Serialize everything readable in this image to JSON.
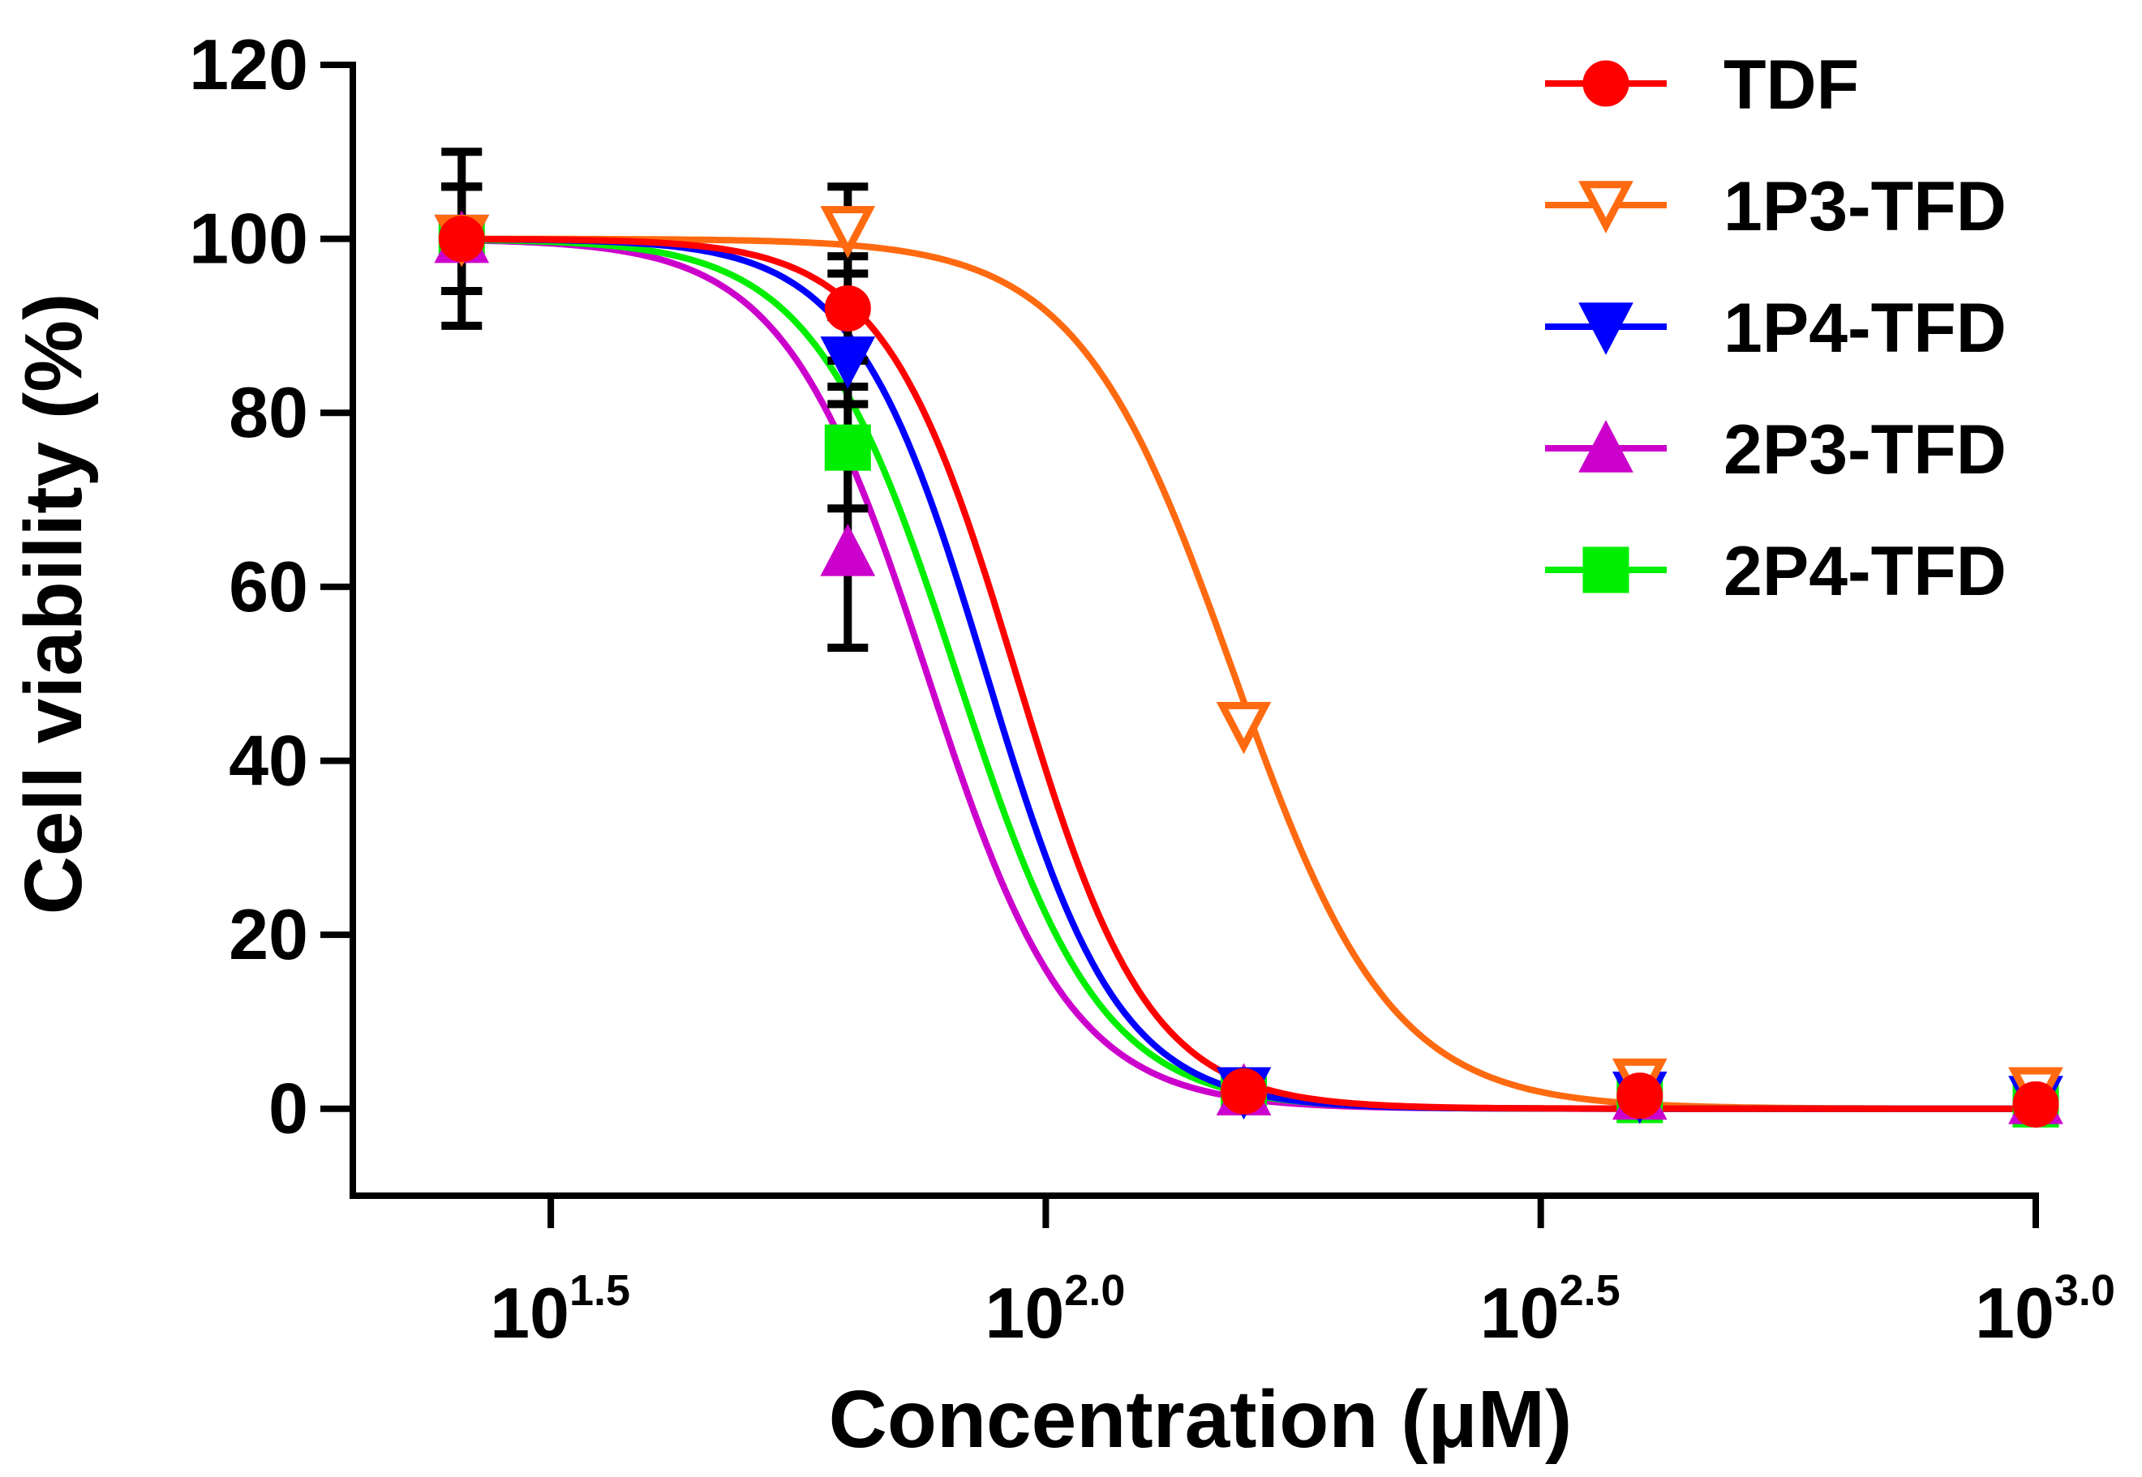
{
  "chart_data": {
    "type": "line",
    "title": "",
    "xlabel": "Concentration (μM)",
    "ylabel": "Cell viability (%)",
    "xscale": "log10",
    "xlim_log10": [
      1.3,
      3.0
    ],
    "ylim": [
      -10,
      120
    ],
    "yticks": [
      0,
      20,
      40,
      60,
      80,
      100,
      120
    ],
    "xticks": [
      {
        "exp": 1.5,
        "base": "10",
        "sup": "1.5"
      },
      {
        "exp": 2.0,
        "base": "10",
        "sup": "2.0"
      },
      {
        "exp": 2.5,
        "base": "10",
        "sup": "2.5"
      },
      {
        "exp": 3.0,
        "base": "10",
        "sup": "3.0"
      }
    ],
    "grid": false,
    "legend_position": "top-right",
    "series": [
      {
        "name": "TDF",
        "color": "#ff0000",
        "marker": "circle",
        "fill": true,
        "x_log10": [
          1.41,
          1.8,
          2.2,
          2.6,
          3.0
        ],
        "y": [
          100,
          92,
          2,
          1.5,
          0.5
        ],
        "err": [
          10,
          6,
          1,
          1,
          1
        ],
        "fit": {
          "top": 100,
          "bottom": 0,
          "log_ic50": 1.97,
          "hill": 6.5
        }
      },
      {
        "name": "1P3-TFD",
        "color": "#ff6a10",
        "marker": "triangle-down",
        "fill": false,
        "x_log10": [
          1.41,
          1.8,
          2.2,
          2.6,
          3.0
        ],
        "y": [
          100,
          101,
          44,
          3,
          2
        ],
        "err": [
          6,
          5,
          2,
          1,
          1
        ],
        "fit": {
          "top": 100,
          "bottom": 0,
          "log_ic50": 2.19,
          "hill": 5.5
        }
      },
      {
        "name": "1P4-TFD",
        "color": "#0000ff",
        "marker": "triangle-down",
        "fill": true,
        "x_log10": [
          1.41,
          1.8,
          2.2,
          2.6,
          3.0
        ],
        "y": [
          100,
          86,
          2,
          1.5,
          1
        ],
        "err": [
          6,
          5,
          1,
          1,
          1
        ],
        "fit": {
          "top": 100,
          "bottom": 0,
          "log_ic50": 1.94,
          "hill": 6.5
        }
      },
      {
        "name": "2P3-TFD",
        "color": "#cc00cc",
        "marker": "triangle-up",
        "fill": true,
        "x_log10": [
          1.41,
          1.8,
          2.2,
          2.6,
          3.0
        ],
        "y": [
          100,
          64,
          2,
          1.5,
          1
        ],
        "err": [
          6,
          11,
          1,
          1,
          1
        ],
        "fit": {
          "top": 100,
          "bottom": 0,
          "log_ic50": 1.88,
          "hill": 6.0
        }
      },
      {
        "name": "2P4-TFD",
        "color": "#00ee00",
        "marker": "square",
        "fill": true,
        "x_log10": [
          1.41,
          1.8,
          2.2,
          2.6,
          3.0
        ],
        "y": [
          100,
          76,
          2,
          1,
          0.5
        ],
        "err": [
          6,
          7,
          1,
          1,
          1
        ],
        "fit": {
          "top": 100,
          "bottom": 0,
          "log_ic50": 1.91,
          "hill": 6.0
        }
      }
    ]
  }
}
